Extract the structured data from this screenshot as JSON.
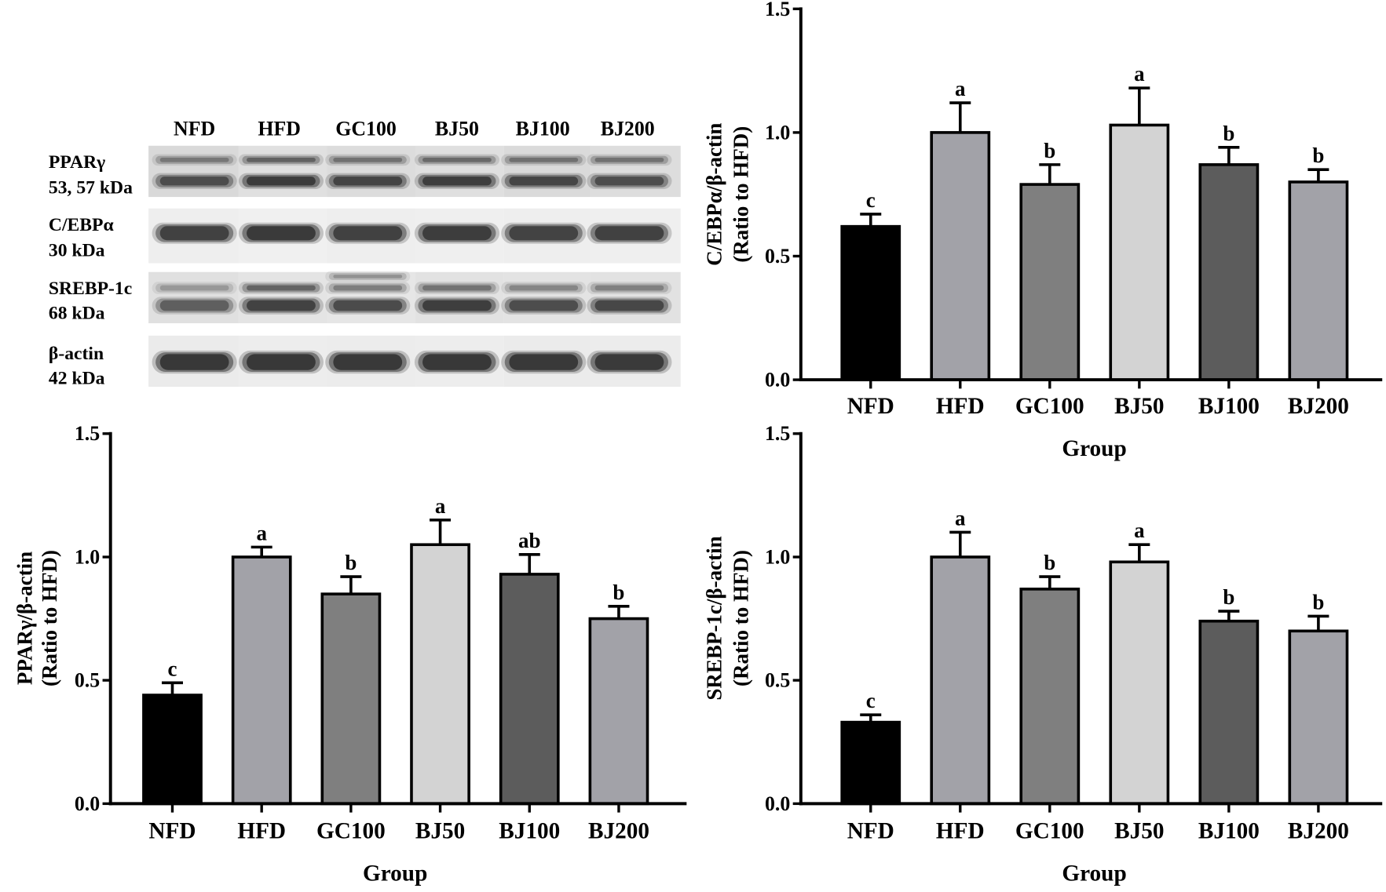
{
  "blot": {
    "lanes": [
      "NFD",
      "HFD",
      "GC100",
      "BJ50",
      "BJ100",
      "BJ200"
    ],
    "rows": [
      {
        "protein": "PPARγ",
        "size": "53, 57 kDa"
      },
      {
        "protein": "C/EBPα",
        "size": "30 kDa"
      },
      {
        "protein": "SREBP-1c",
        "size": "68 kDa"
      },
      {
        "protein": "β-actin",
        "size": "42 kDa"
      }
    ]
  },
  "chart_data": [
    {
      "type": "bar",
      "ylabel": [
        "C/EBPα/β-actin",
        "(Ratio to HFD)"
      ],
      "xlabel": "Group",
      "categories": [
        "NFD",
        "HFD",
        "GC100",
        "BJ50",
        "BJ100",
        "BJ200"
      ],
      "values": [
        0.62,
        1.0,
        0.79,
        1.03,
        0.87,
        0.8
      ],
      "error": [
        0.05,
        0.12,
        0.08,
        0.15,
        0.07,
        0.05
      ],
      "significance": [
        "c",
        "a",
        "b",
        "a",
        "b",
        "b"
      ],
      "ylim": [
        0,
        1.5
      ],
      "yticks": [
        "0.0",
        "0.5",
        "1.0",
        "1.5"
      ],
      "bar_colors": [
        "#000000",
        "#a2a2a8",
        "#7f7f7f",
        "#d3d3d3",
        "#5c5c5c",
        "#a2a2a8"
      ],
      "grid": false,
      "legend": false
    },
    {
      "type": "bar",
      "ylabel": [
        "PPARγ/β-actin",
        "(Ratio to HFD)"
      ],
      "xlabel": "Group",
      "categories": [
        "NFD",
        "HFD",
        "GC100",
        "BJ50",
        "BJ100",
        "BJ200"
      ],
      "values": [
        0.44,
        1.0,
        0.85,
        1.05,
        0.93,
        0.75
      ],
      "error": [
        0.05,
        0.04,
        0.07,
        0.1,
        0.08,
        0.05
      ],
      "significance": [
        "c",
        "a",
        "b",
        "a",
        "ab",
        "b"
      ],
      "ylim": [
        0,
        1.5
      ],
      "yticks": [
        "0.0",
        "0.5",
        "1.0",
        "1.5"
      ],
      "bar_colors": [
        "#000000",
        "#a2a2a8",
        "#7f7f7f",
        "#d3d3d3",
        "#5c5c5c",
        "#a2a2a8"
      ],
      "grid": false,
      "legend": false
    },
    {
      "type": "bar",
      "ylabel": [
        "SREBP-1c/β-actin",
        "(Ratio to HFD)"
      ],
      "xlabel": "Group",
      "categories": [
        "NFD",
        "HFD",
        "GC100",
        "BJ50",
        "BJ100",
        "BJ200"
      ],
      "values": [
        0.33,
        1.0,
        0.87,
        0.98,
        0.74,
        0.7
      ],
      "error": [
        0.03,
        0.1,
        0.05,
        0.07,
        0.04,
        0.06
      ],
      "significance": [
        "c",
        "a",
        "b",
        "a",
        "b",
        "b"
      ],
      "ylim": [
        0,
        1.5
      ],
      "yticks": [
        "0.0",
        "0.5",
        "1.0",
        "1.5"
      ],
      "bar_colors": [
        "#000000",
        "#a2a2a8",
        "#7f7f7f",
        "#d3d3d3",
        "#5c5c5c",
        "#a2a2a8"
      ],
      "grid": false,
      "legend": false
    }
  ]
}
